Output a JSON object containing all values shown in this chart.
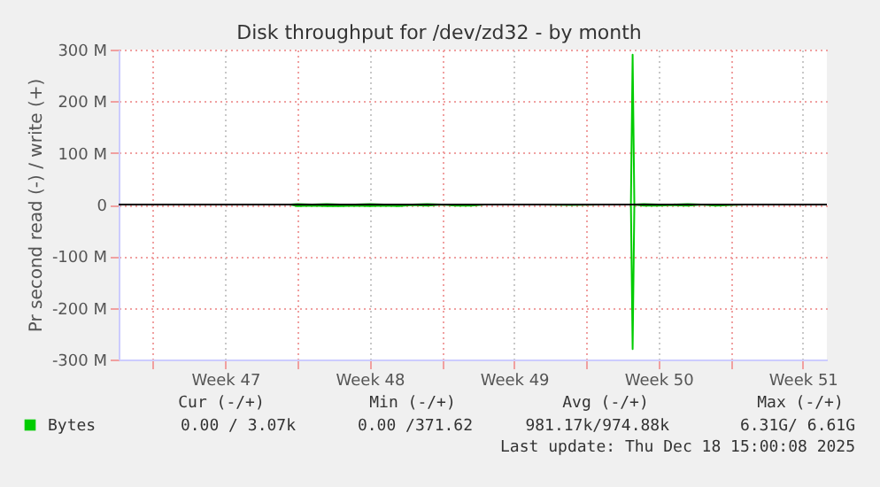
{
  "chart_data": {
    "type": "line",
    "title": "Disk throughput for /dev/zd32 - by month",
    "ylabel": "Pr second read (-) / write (+)",
    "x": [
      "2025-11-23T16:00",
      "2025-11-24T00:00",
      "2025-11-24T17:00",
      "2025-11-25T10:00",
      "2025-11-26T02:00",
      "2025-11-26T19:00",
      "2025-11-27T12:00",
      "2025-11-28T05:00",
      "2025-11-28T22:00",
      "2025-11-29T14:00",
      "2025-11-30T07:00",
      "2025-12-01T00:00",
      "2025-12-01T17:00",
      "2025-12-02T10:00",
      "2025-12-03T02:00",
      "2025-12-04T12:00",
      "2025-12-05T22:00",
      "2025-12-07T07:00",
      "2025-12-08T17:00",
      "2025-12-09T18:00",
      "2025-12-10T04:00",
      "2025-12-10T06:00",
      "2025-12-10T08:00",
      "2025-12-10T19:00",
      "2025-12-11T12:00",
      "2025-12-12T05:00",
      "2025-12-12T22:00",
      "2025-12-13T14:00",
      "2025-12-14T07:00",
      "2025-12-15T00:00",
      "2025-12-15T17:00"
    ],
    "series": [
      {
        "name": "Bytes",
        "color": "#00cc00",
        "values": [
          0,
          1000000,
          0,
          1000000,
          0,
          0,
          1000000,
          0,
          0,
          0,
          1000000,
          0,
          0,
          0,
          0,
          0,
          0,
          0,
          0,
          0,
          0,
          290000000,
          0,
          1000000,
          0,
          0,
          1000000,
          0,
          0,
          0,
          0
        ]
      },
      {
        "color": "#00cc00",
        "values": [
          0,
          -3000000,
          -2000000,
          -3000000,
          -3000000,
          -2000000,
          -3000000,
          -2000000,
          -3000000,
          -1000000,
          -2000000,
          0,
          -2000000,
          -2000000,
          0,
          0,
          0,
          -1000000,
          0,
          0,
          0,
          -280000000,
          0,
          -2000000,
          -2000000,
          -1000000,
          -2000000,
          0,
          -2000000,
          -1000000,
          0
        ]
      }
    ],
    "xlim": [
      "2025-11-15T08:00",
      "2025-12-19T16:00"
    ],
    "xticks": [
      {
        "value": "2025-11-17",
        "label": null
      },
      {
        "value": "2025-11-20T12:00",
        "label": "Week 47"
      },
      {
        "value": "2025-11-24",
        "label": null
      },
      {
        "value": "2025-11-27T12:00",
        "label": "Week 48"
      },
      {
        "value": "2025-12-01",
        "label": null
      },
      {
        "value": "2025-12-04T12:00",
        "label": "Week 49"
      },
      {
        "value": "2025-12-08",
        "label": null
      },
      {
        "value": "2025-12-11T12:00",
        "label": "Week 50"
      },
      {
        "value": "2025-12-15",
        "label": null
      },
      {
        "value": "2025-12-18T12:00",
        "label": "Week 51"
      }
    ],
    "ylim": [
      -300000000,
      300000000
    ],
    "yticks": [
      {
        "value": -300000000,
        "label": "-300 M"
      },
      {
        "value": -200000000,
        "label": "-200 M"
      },
      {
        "value": -100000000,
        "label": "-100 M"
      },
      {
        "value": 0,
        "label": "0"
      },
      {
        "value": 100000000,
        "label": "100 M"
      },
      {
        "value": 200000000,
        "label": "200 M"
      },
      {
        "value": 300000000,
        "label": "300 M"
      }
    ],
    "ref_lines": [
      {
        "axis": "y",
        "value": 0,
        "color": "#000000"
      }
    ],
    "grid": true,
    "legend": "bottom",
    "annotations": [
      "Cur (-/+)",
      "Min (-/+)",
      "Avg (-/+)",
      "Max (-/+)",
      "0.00 /  3.07k",
      "0.00 /371.62",
      "981.17k/974.88k",
      "6.31G/  6.61G",
      "Last update: Thu Dec 18 15:00:08 2025"
    ]
  }
}
